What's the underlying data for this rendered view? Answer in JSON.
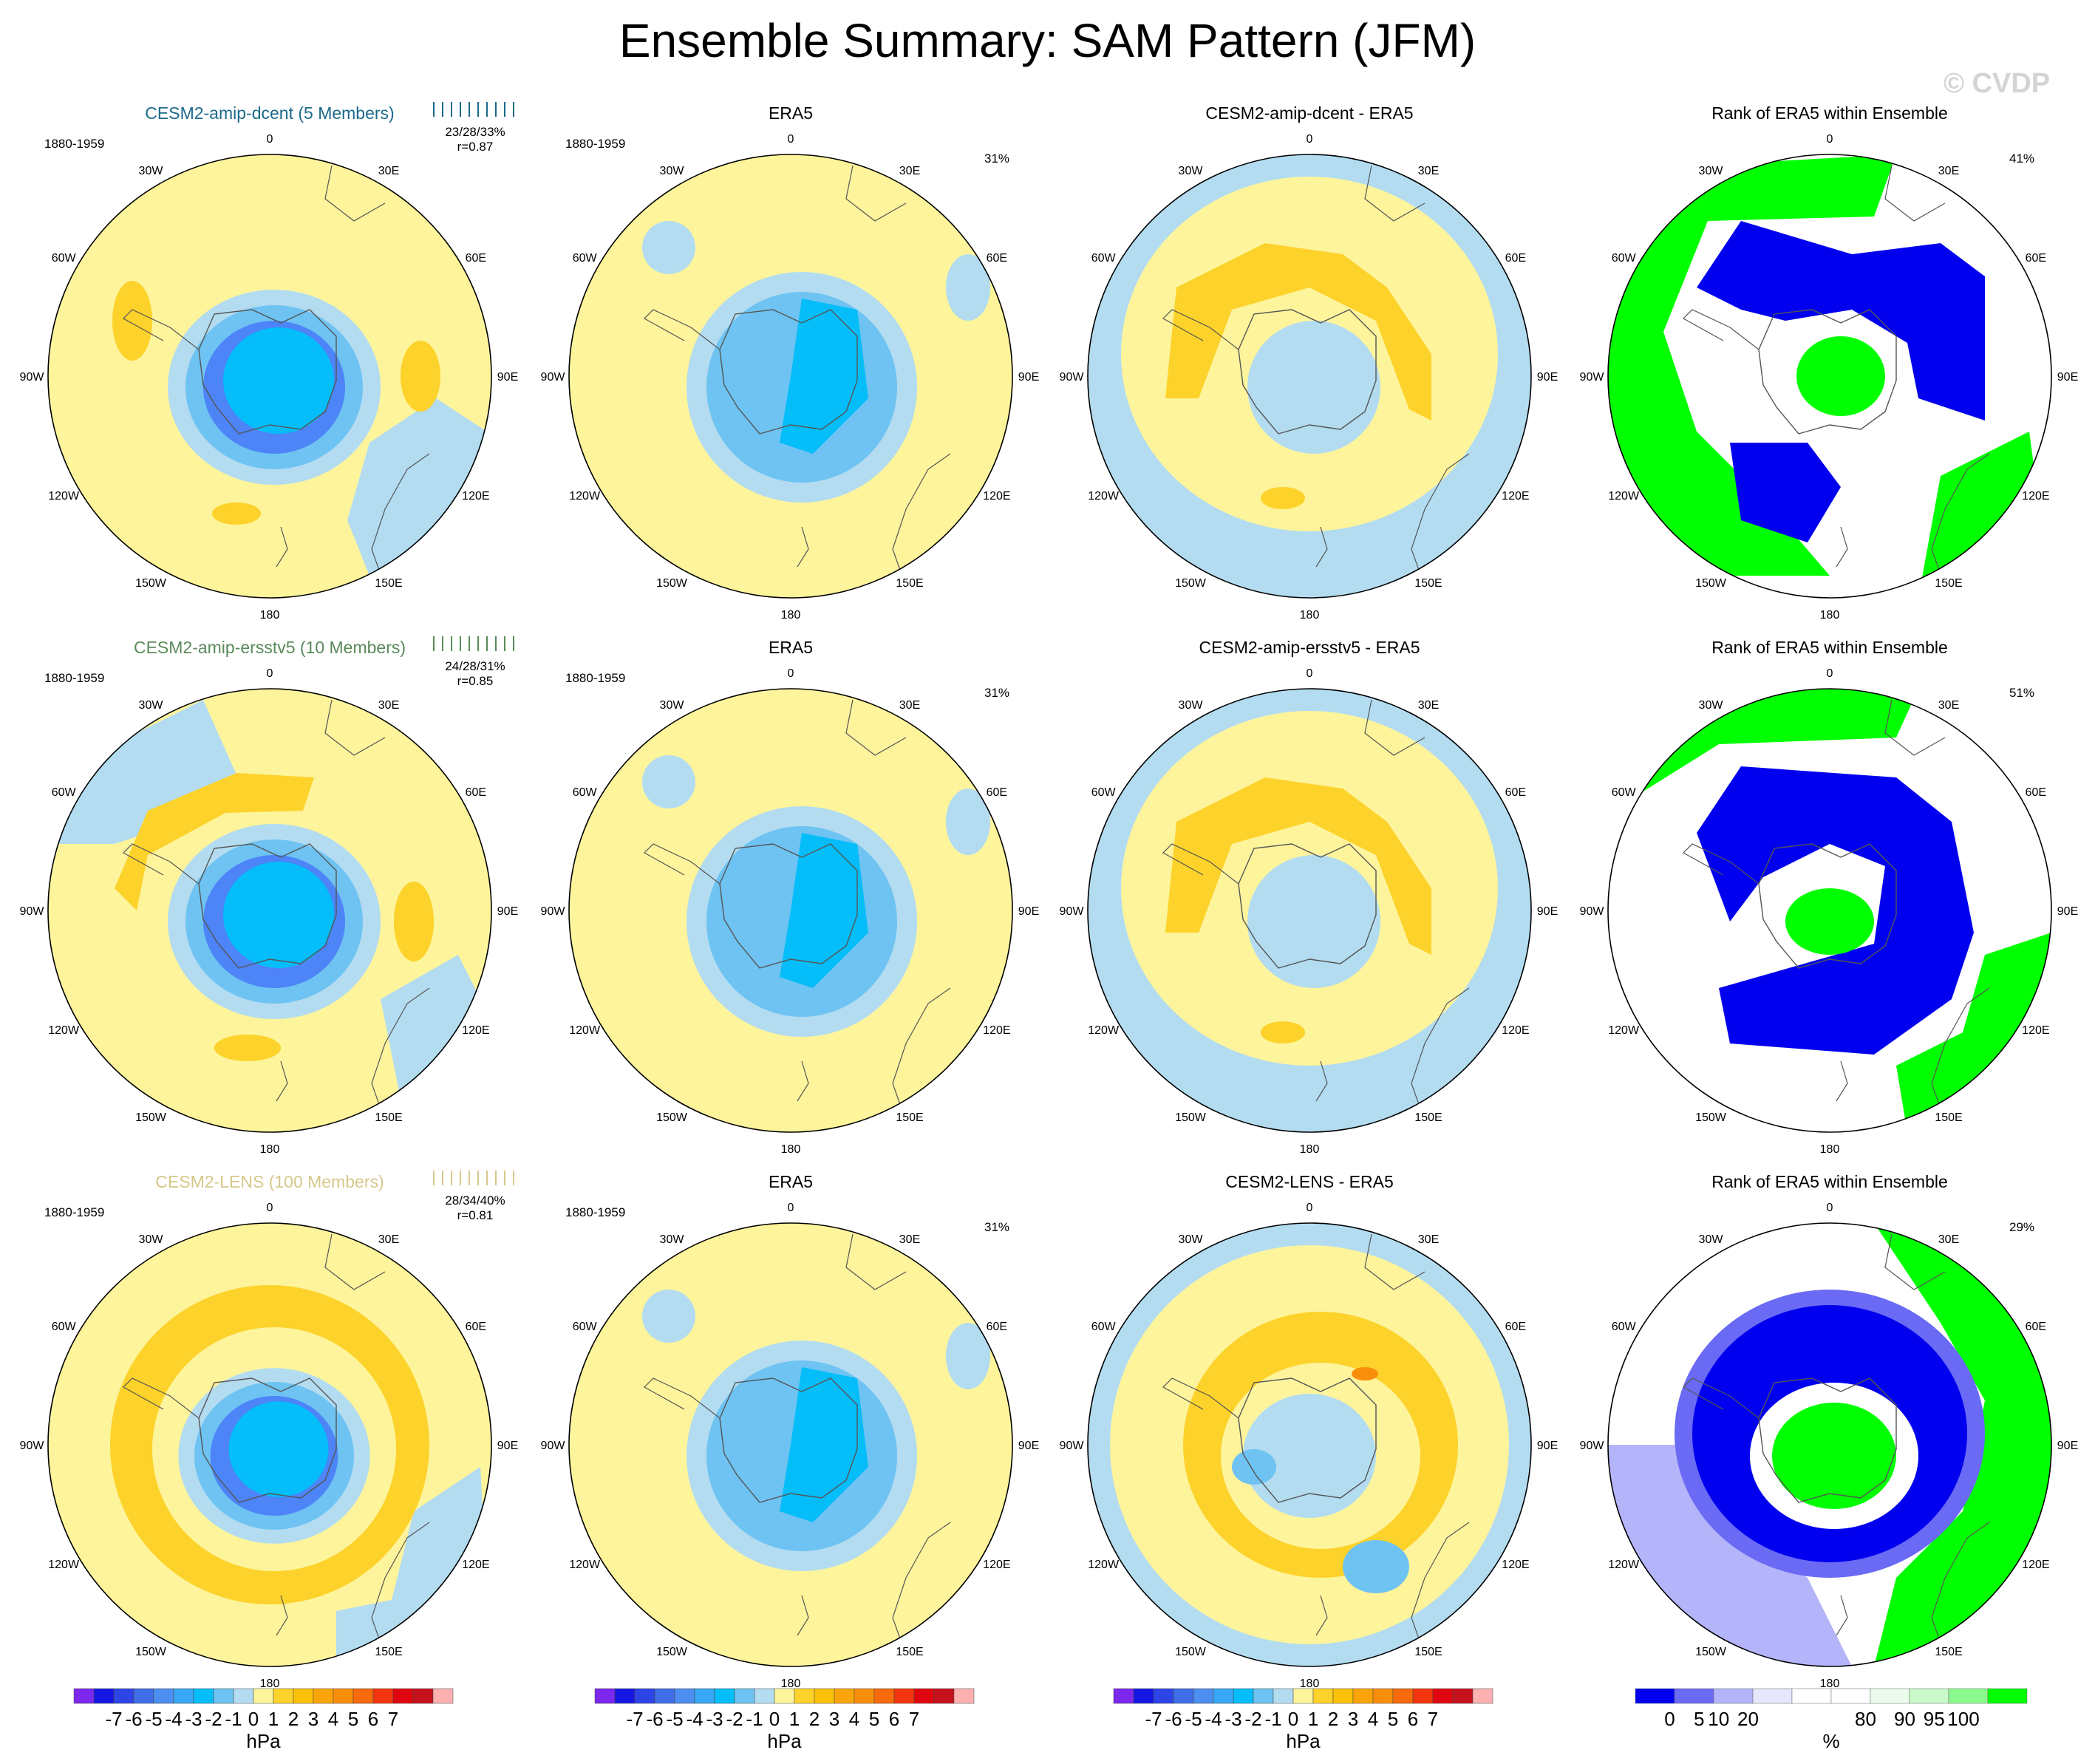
{
  "title": "Ensemble Summary: SAM Pattern (JFM)",
  "watermark": "© CVDP",
  "period": "1880-1959",
  "lon_labels": [
    "0",
    "30E",
    "60E",
    "90E",
    "120E",
    "150E",
    "180",
    "150W",
    "120W",
    "90W",
    "60W",
    "30W"
  ],
  "colors": {
    "yellow": "#fdf49c",
    "orange": "#fdd22a",
    "orange_dark": "#fbb404",
    "red_orange": "#f98e0a",
    "blue_light": "#b3dcf1",
    "blue_mid": "#6ec3f2",
    "blue_cyan": "#04bdf9",
    "blue_dark": "#4d84f7",
    "rank_blue": "#0000ee",
    "rank_blue_mid": "#6a6af5",
    "rank_lavender": "#b4b4fa",
    "rank_pale": "#e6e6fc",
    "rank_green": "#00ff00",
    "rank_green_light": "#8dfa8d",
    "rank_green_pale": "#dcfcdc",
    "coast": "#555555"
  },
  "colorbars": {
    "hpa": {
      "colors": [
        "#7c27ee",
        "#1717e3",
        "#2d44e6",
        "#3f6ee8",
        "#4d8ff0",
        "#36a8f5",
        "#05bdf9",
        "#6ec3f2",
        "#b3dcf1",
        "#fdf49c",
        "#fdd22a",
        "#fbc106",
        "#f9a50a",
        "#f98e0a",
        "#f86a0a",
        "#f3350d",
        "#e0060f",
        "#c4121c",
        "#fcb0b0"
      ],
      "ticks": [
        "-7",
        "-6",
        "-5",
        "-4",
        "-3",
        "-2",
        "-1",
        "0",
        "1",
        "2",
        "3",
        "4",
        "5",
        "6",
        "7"
      ],
      "unit": "hPa"
    },
    "rank": {
      "colors": [
        "#0000ee",
        "#6a6af5",
        "#b4b4fa",
        "#e6e6fc",
        "#ffffff",
        "#ffffff",
        "#ecfcec",
        "#c9fac9",
        "#8dfa8d",
        "#00ff00"
      ],
      "ticks": [
        "0",
        "5",
        "10",
        "20",
        "%",
        "80",
        "90",
        "95",
        "100"
      ],
      "unit": "%"
    }
  },
  "rows": [
    {
      "model": "CESM2-amip-dcent (5 Members)",
      "model_color": "#1c6a8a",
      "stats": "23/28/33%",
      "r": "r=0.87",
      "era_pct": "31%",
      "diff_title": "CESM2-amip-dcent - ERA5",
      "rank_title": "Rank of ERA5 within Ensemble",
      "rank_pct": "41%"
    },
    {
      "model": "CESM2-amip-ersstv5 (10 Members)",
      "model_color": "#5a8a5a",
      "stats": "24/28/31%",
      "r": "r=0.85",
      "era_pct": "31%",
      "diff_title": "CESM2-amip-ersstv5 - ERA5",
      "rank_title": "Rank of ERA5 within Ensemble",
      "rank_pct": "51%"
    },
    {
      "model": "CESM2-LENS (100 Members)",
      "model_color": "#d6c88a",
      "stats": "28/34/40%",
      "r": "r=0.81",
      "era_pct": "31%",
      "diff_title": "CESM2-LENS - ERA5",
      "rank_title": "Rank of ERA5 within Ensemble",
      "rank_pct": "29%"
    }
  ],
  "era_title": "ERA5"
}
